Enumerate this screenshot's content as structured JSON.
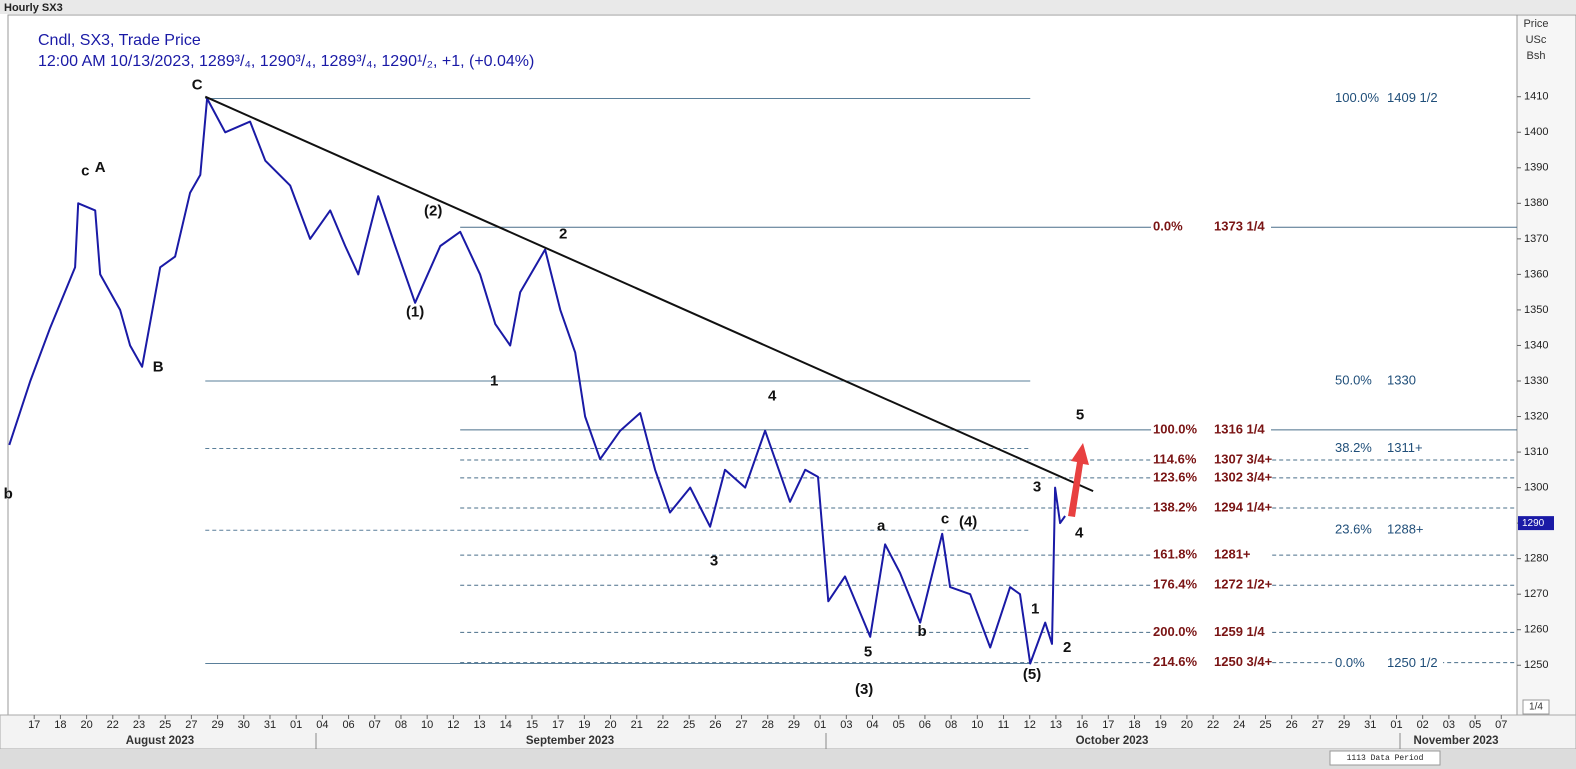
{
  "header": "Hourly SX3",
  "chart_data": {
    "type": "line",
    "legend_lines": [
      "Cndl, SX3, Trade Price",
      "12:00 AM 10/13/2023, 1289³/₄, 1290³/₄, 1289³/₄, 1290¹/₂, +1, (+0.04%)"
    ],
    "axis_title": [
      "Price",
      "USc",
      "Bsh"
    ],
    "ylim": [
      1236,
      1433
    ],
    "yticks": [
      1250,
      1260,
      1270,
      1280,
      1290,
      1300,
      1310,
      1320,
      1330,
      1340,
      1350,
      1360,
      1370,
      1380,
      1390,
      1400,
      1410
    ],
    "last_price": 1290,
    "xlim": [
      -1,
      56.6
    ],
    "xticks": [
      {
        "value": 0,
        "label": "17"
      },
      {
        "value": 1,
        "label": "18"
      },
      {
        "value": 2,
        "label": "20"
      },
      {
        "value": 3,
        "label": "22"
      },
      {
        "value": 4,
        "label": "23"
      },
      {
        "value": 5,
        "label": "25"
      },
      {
        "value": 6,
        "label": "27"
      },
      {
        "value": 7,
        "label": "29"
      },
      {
        "value": 8,
        "label": "30"
      },
      {
        "value": 9,
        "label": "31"
      },
      {
        "value": 10,
        "label": "01"
      },
      {
        "value": 11,
        "label": "04"
      },
      {
        "value": 12,
        "label": "06"
      },
      {
        "value": 13,
        "label": "07"
      },
      {
        "value": 14,
        "label": "08"
      },
      {
        "value": 15,
        "label": "10"
      },
      {
        "value": 16,
        "label": "12"
      },
      {
        "value": 17,
        "label": "13"
      },
      {
        "value": 18,
        "label": "14"
      },
      {
        "value": 19,
        "label": "15"
      },
      {
        "value": 20,
        "label": "17"
      },
      {
        "value": 21,
        "label": "19"
      },
      {
        "value": 22,
        "label": "20"
      },
      {
        "value": 23,
        "label": "21"
      },
      {
        "value": 24,
        "label": "22"
      },
      {
        "value": 25,
        "label": "25"
      },
      {
        "value": 26,
        "label": "26"
      },
      {
        "value": 27,
        "label": "27"
      },
      {
        "value": 28,
        "label": "28"
      },
      {
        "value": 29,
        "label": "29"
      },
      {
        "value": 30,
        "label": "01"
      },
      {
        "value": 31,
        "label": "03"
      },
      {
        "value": 32,
        "label": "04"
      },
      {
        "value": 33,
        "label": "05"
      },
      {
        "value": 34,
        "label": "06"
      },
      {
        "value": 35,
        "label": "08"
      },
      {
        "value": 36,
        "label": "10"
      },
      {
        "value": 37,
        "label": "11"
      },
      {
        "value": 38,
        "label": "12"
      },
      {
        "value": 39,
        "label": "13"
      },
      {
        "value": 40,
        "label": "16"
      },
      {
        "value": 41,
        "label": "17"
      },
      {
        "value": 42,
        "label": "18"
      },
      {
        "value": 43,
        "label": "19"
      },
      {
        "value": 44,
        "label": "20"
      },
      {
        "value": 45,
        "label": "22"
      },
      {
        "value": 46,
        "label": "24"
      },
      {
        "value": 47,
        "label": "25"
      },
      {
        "value": 48,
        "label": "26"
      },
      {
        "value": 49,
        "label": "27"
      },
      {
        "value": 50,
        "label": "29"
      },
      {
        "value": 51,
        "label": "31"
      },
      {
        "value": 52,
        "label": "01"
      },
      {
        "value": 53,
        "label": "02"
      },
      {
        "value": 54,
        "label": "03"
      },
      {
        "value": 55,
        "label": "05"
      },
      {
        "value": 56,
        "label": "07"
      }
    ],
    "months": [
      "August 2023",
      "September 2023",
      "October 2023",
      "November 2023"
    ],
    "series": [
      {
        "name": "SX3",
        "color": "#1a1aa6",
        "x": [
          -0.95,
          -0.15,
          0.61,
          1.56,
          1.68,
          2.33,
          2.52,
          3.28,
          3.66,
          4.12,
          4.81,
          5.38,
          5.95,
          6.34,
          6.6,
          7.29,
          8.24,
          8.82,
          9.77,
          10.53,
          11.3,
          11.87,
          12.37,
          13.13,
          13.78,
          14.54,
          15.5,
          16.26,
          17.02,
          17.6,
          18.17,
          18.55,
          19.5,
          20.08,
          20.65,
          21.03,
          21.6,
          22.37,
          23.13,
          23.7,
          24.27,
          25.04,
          25.8,
          26.37,
          27.14,
          27.9,
          28.85,
          29.43,
          29.92,
          30.31,
          30.95,
          31.91,
          32.48,
          33.05,
          33.82,
          34.66,
          34.96,
          35.73,
          36.49,
          37.25,
          37.63,
          38.02,
          38.59,
          38.85,
          38.97,
          39.16,
          39.35
        ],
        "values": [
          1312,
          1330,
          1345,
          1362,
          1380,
          1378,
          1360,
          1350,
          1340,
          1334,
          1362,
          1365,
          1383,
          1388,
          1409.5,
          1400,
          1403,
          1392,
          1385,
          1370,
          1378,
          1368,
          1360,
          1382,
          1368,
          1352,
          1368,
          1372,
          1360,
          1346,
          1340,
          1355,
          1367,
          1350,
          1338,
          1320,
          1308,
          1316,
          1321,
          1305,
          1293,
          1300,
          1289,
          1305,
          1300,
          1316,
          1296,
          1305,
          1303,
          1268,
          1275,
          1258,
          1284,
          1276,
          1262,
          1287,
          1272,
          1270,
          1255,
          1272,
          1270,
          1250.5,
          1262,
          1256,
          1300,
          1290,
          1292
        ]
      }
    ],
    "trendline": {
      "x": [
        6.53,
        40.42
      ],
      "y": [
        1410,
        1299
      ]
    },
    "fib_sets": [
      {
        "color": "#7a1414",
        "x_from": 16.26,
        "x_to": 56.6,
        "levels": [
          {
            "pct": "0.0%",
            "value": 1373.25,
            "label": "1373 1/4",
            "dashed": false
          },
          {
            "pct": "100.0%",
            "value": 1316.25,
            "label": "1316 1/4",
            "dashed": false
          },
          {
            "pct": "114.6%",
            "value": 1307.75,
            "label": "1307 3/4+",
            "dashed": true
          },
          {
            "pct": "123.6%",
            "value": 1302.75,
            "label": "1302 3/4+",
            "dashed": true
          },
          {
            "pct": "138.2%",
            "value": 1294.25,
            "label": "1294 1/4+",
            "dashed": true
          },
          {
            "pct": "161.8%",
            "value": 1281,
            "label": "1281+",
            "dashed": true
          },
          {
            "pct": "176.4%",
            "value": 1272.5,
            "label": "1272 1/2+",
            "dashed": true
          },
          {
            "pct": "200.0%",
            "value": 1259.25,
            "label": "1259 1/4",
            "dashed": true
          },
          {
            "pct": "214.6%",
            "value": 1250.75,
            "label": "1250 3/4+",
            "dashed": true
          }
        ]
      },
      {
        "color": "#1f4e79",
        "x_from": 6.53,
        "x_to": 38.02,
        "levels": [
          {
            "pct": "100.0%",
            "value": 1409.5,
            "label": "1409 1/2",
            "dashed": false
          },
          {
            "pct": "50.0%",
            "value": 1330,
            "label": "1330",
            "dashed": false
          },
          {
            "pct": "38.2%",
            "value": 1311,
            "label": "1311+",
            "dashed": true
          },
          {
            "pct": "23.6%",
            "value": 1288,
            "label": "1288+",
            "dashed": true
          },
          {
            "pct": "0.0%",
            "value": 1250.5,
            "label": "1250 1/2",
            "dashed": false
          }
        ]
      }
    ],
    "annotations": [
      {
        "text": "C",
        "x": 6.22,
        "y": 1413.1
      },
      {
        "text": "c",
        "x": 1.95,
        "y": 1388.9
      },
      {
        "text": "A",
        "x": 2.52,
        "y": 1390
      },
      {
        "text": "B",
        "x": 4.73,
        "y": 1333.8
      },
      {
        "text": "(2)",
        "x": 15.23,
        "y": 1377.7
      },
      {
        "text": "(1)",
        "x": 14.54,
        "y": 1349.3
      },
      {
        "text": "2",
        "x": 20.19,
        "y": 1371.2
      },
      {
        "text": "1",
        "x": 17.56,
        "y": 1329.9
      },
      {
        "text": "4",
        "x": 28.17,
        "y": 1325.6
      },
      {
        "text": "3",
        "x": 25.95,
        "y": 1279.2
      },
      {
        "text": "5",
        "x": 31.83,
        "y": 1253.6
      },
      {
        "text": "(3)",
        "x": 31.68,
        "y": 1243
      },
      {
        "text": "a",
        "x": 32.33,
        "y": 1289.1
      },
      {
        "text": "b",
        "x": 33.89,
        "y": 1259.3
      },
      {
        "text": "c",
        "x": 34.77,
        "y": 1291
      },
      {
        "text": "(4)",
        "x": 35.65,
        "y": 1290.2
      },
      {
        "text": "1",
        "x": 38.21,
        "y": 1265.7
      },
      {
        "text": "2",
        "x": 39.43,
        "y": 1254.8
      },
      {
        "text": "(5)",
        "x": 38.09,
        "y": 1247.2
      },
      {
        "text": "3",
        "x": 38.28,
        "y": 1300
      },
      {
        "text": "4",
        "x": 39.89,
        "y": 1287.1
      },
      {
        "text": "5",
        "x": 39.92,
        "y": 1320.3
      },
      {
        "text": "b",
        "x": -0.99,
        "y": 1298
      }
    ],
    "page_indicator": "1/4",
    "footer": "1113 Data Period"
  }
}
